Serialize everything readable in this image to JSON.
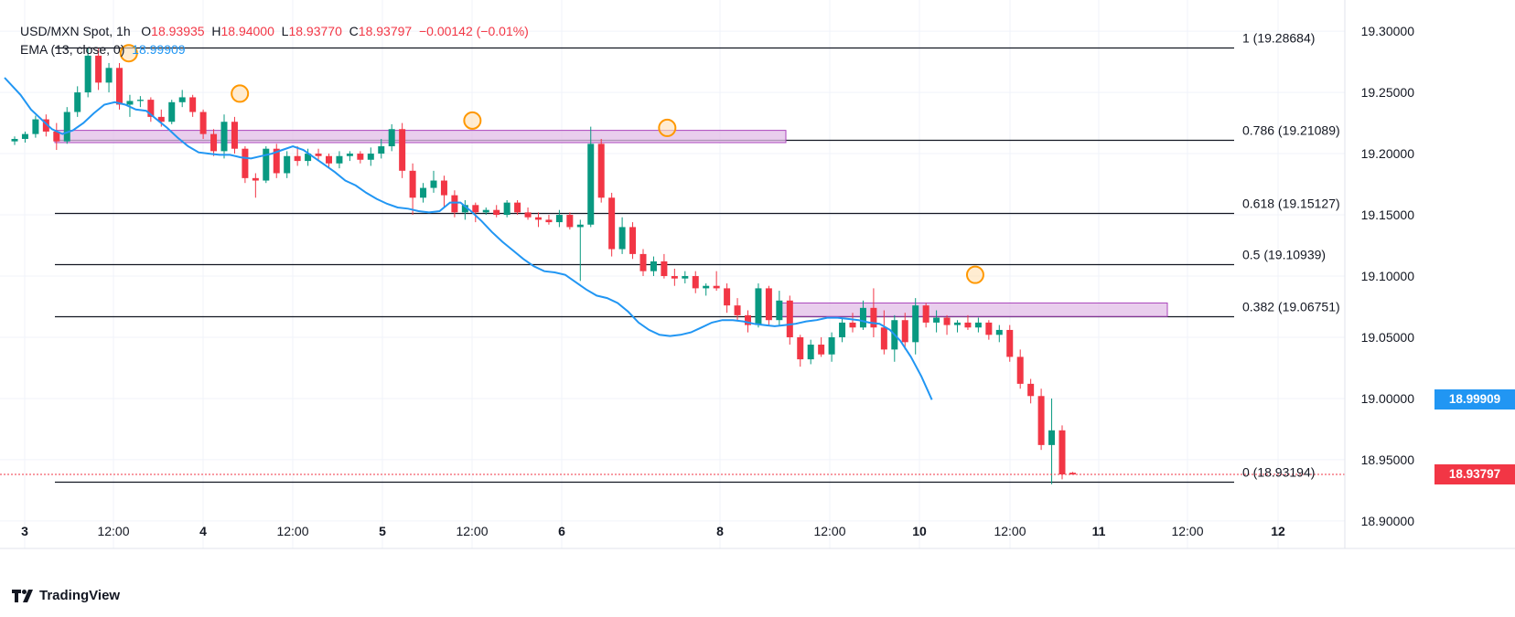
{
  "legend": {
    "line1": {
      "symbol": "USD/MXN Spot, 1h",
      "o_label": "O",
      "o": "18.93935",
      "h_label": "H",
      "h": "18.94000",
      "l_label": "L",
      "l": "18.93770",
      "c_label": "C",
      "c": "18.93797",
      "change": "−0.00142 (−0.01%)"
    },
    "line2": {
      "label": "EMA (13, close, 0)",
      "value": "18.99909"
    }
  },
  "logo": "TradingView",
  "price_tags": {
    "ema": "18.99909",
    "last": "18.93797"
  },
  "colors": {
    "up": "#089981",
    "down": "#f23645",
    "ema": "#2196f3",
    "zone_fill": "#e1bee7",
    "zone_stroke": "#ab47bc",
    "marker": "#ff9800",
    "fib_line": "#131722",
    "last_price_line": "#f23645"
  },
  "chart_data": {
    "type": "candlestick",
    "symbol": "USD/MXN Spot",
    "interval": "1h",
    "ylim": [
      18.885,
      19.318
    ],
    "y_ticks": [
      "19.30000",
      "19.25000",
      "19.20000",
      "19.15000",
      "19.10000",
      "19.05000",
      "19.00000",
      "18.95000",
      "18.90000"
    ],
    "x_ticks": [
      "3",
      "12:00",
      "4",
      "12:00",
      "5",
      "12:00",
      "6",
      "8",
      "12:00",
      "10",
      "12:00",
      "11",
      "12:00",
      "12"
    ],
    "x_ticks_bold": [
      "3",
      "4",
      "5",
      "6",
      "8",
      "10",
      "11",
      "12"
    ],
    "fib_levels": [
      {
        "label": "1 (19.28684)",
        "value": 19.28684
      },
      {
        "label": "0.786 (19.21089)",
        "value": 19.21089
      },
      {
        "label": "0.618 (19.15127)",
        "value": 19.15127
      },
      {
        "label": "0.5 (19.10939)",
        "value": 19.10939
      },
      {
        "label": "0.382 (19.06751)",
        "value": 19.06751
      },
      {
        "label": "0 (18.93194)",
        "value": 18.93194
      }
    ],
    "zones": [
      {
        "y1": 19.209,
        "y2": 19.219
      },
      {
        "y1": 19.067,
        "y2": 19.078
      }
    ],
    "markers": [
      19.282,
      19.249,
      19.227,
      19.221,
      19.101
    ],
    "last_price": 18.93797,
    "ema": [
      19.248,
      19.236,
      19.228,
      19.22,
      19.216,
      19.219,
      19.225,
      19.233,
      19.24,
      19.242,
      19.24,
      19.236,
      19.235,
      19.228,
      19.221,
      19.213,
      19.206,
      19.201,
      19.2,
      19.199,
      19.199,
      19.197,
      19.196,
      19.198,
      19.2,
      19.203,
      19.206,
      19.203,
      19.197,
      19.191,
      19.185,
      19.178,
      19.174,
      19.168,
      19.163,
      19.159,
      19.156,
      19.155,
      19.153,
      19.152,
      19.153,
      19.16,
      19.16,
      19.153,
      19.145,
      19.136,
      19.128,
      19.121,
      19.114,
      19.108,
      19.104,
      19.103,
      19.101,
      19.095,
      19.089,
      19.084,
      19.082,
      19.078,
      19.071,
      19.062,
      19.056,
      19.052,
      19.051,
      19.052,
      19.054,
      19.058,
      19.062,
      19.064,
      19.064,
      19.063,
      19.061,
      19.06,
      19.059,
      19.06,
      19.061,
      19.063,
      19.064,
      19.066,
      19.066,
      19.065,
      19.064,
      19.062,
      19.061,
      19.056,
      19.047,
      19.034,
      19.018,
      18.999
    ],
    "candles": [
      {
        "o": 19.21,
        "h": 19.214,
        "l": 19.207,
        "c": 19.212
      },
      {
        "o": 19.212,
        "h": 19.218,
        "l": 19.209,
        "c": 19.216
      },
      {
        "o": 19.216,
        "h": 19.231,
        "l": 19.213,
        "c": 19.228
      },
      {
        "o": 19.228,
        "h": 19.232,
        "l": 19.214,
        "c": 19.218
      },
      {
        "o": 19.218,
        "h": 19.225,
        "l": 19.203,
        "c": 19.21
      },
      {
        "o": 19.21,
        "h": 19.238,
        "l": 19.208,
        "c": 19.234
      },
      {
        "o": 19.234,
        "h": 19.255,
        "l": 19.23,
        "c": 19.25
      },
      {
        "o": 19.25,
        "h": 19.286,
        "l": 19.246,
        "c": 19.28
      },
      {
        "o": 19.28,
        "h": 19.286,
        "l": 19.252,
        "c": 19.258
      },
      {
        "o": 19.258,
        "h": 19.274,
        "l": 19.25,
        "c": 19.27
      },
      {
        "o": 19.27,
        "h": 19.274,
        "l": 19.236,
        "c": 19.24
      },
      {
        "o": 19.24,
        "h": 19.248,
        "l": 19.23,
        "c": 19.243
      },
      {
        "o": 19.243,
        "h": 19.247,
        "l": 19.238,
        "c": 19.244
      },
      {
        "o": 19.244,
        "h": 19.246,
        "l": 19.226,
        "c": 19.23
      },
      {
        "o": 19.23,
        "h": 19.236,
        "l": 19.222,
        "c": 19.226
      },
      {
        "o": 19.226,
        "h": 19.244,
        "l": 19.224,
        "c": 19.242
      },
      {
        "o": 19.242,
        "h": 19.252,
        "l": 19.238,
        "c": 19.246
      },
      {
        "o": 19.246,
        "h": 19.248,
        "l": 19.23,
        "c": 19.234
      },
      {
        "o": 19.234,
        "h": 19.236,
        "l": 19.212,
        "c": 19.216
      },
      {
        "o": 19.216,
        "h": 19.22,
        "l": 19.198,
        "c": 19.202
      },
      {
        "o": 19.202,
        "h": 19.232,
        "l": 19.196,
        "c": 19.226
      },
      {
        "o": 19.226,
        "h": 19.23,
        "l": 19.2,
        "c": 19.204
      },
      {
        "o": 19.204,
        "h": 19.206,
        "l": 19.176,
        "c": 19.18
      },
      {
        "o": 19.18,
        "h": 19.184,
        "l": 19.164,
        "c": 19.178
      },
      {
        "o": 19.178,
        "h": 19.206,
        "l": 19.176,
        "c": 19.204
      },
      {
        "o": 19.204,
        "h": 19.208,
        "l": 19.18,
        "c": 19.184
      },
      {
        "o": 19.184,
        "h": 19.202,
        "l": 19.18,
        "c": 19.198
      },
      {
        "o": 19.198,
        "h": 19.206,
        "l": 19.19,
        "c": 19.194
      },
      {
        "o": 19.194,
        "h": 19.204,
        "l": 19.19,
        "c": 19.2
      },
      {
        "o": 19.2,
        "h": 19.204,
        "l": 19.195,
        "c": 19.198
      },
      {
        "o": 19.198,
        "h": 19.2,
        "l": 19.188,
        "c": 19.192
      },
      {
        "o": 19.192,
        "h": 19.202,
        "l": 19.188,
        "c": 19.198
      },
      {
        "o": 19.198,
        "h": 19.202,
        "l": 19.194,
        "c": 19.2
      },
      {
        "o": 19.2,
        "h": 19.202,
        "l": 19.192,
        "c": 19.195
      },
      {
        "o": 19.195,
        "h": 19.205,
        "l": 19.19,
        "c": 19.2
      },
      {
        "o": 19.2,
        "h": 19.212,
        "l": 19.196,
        "c": 19.206
      },
      {
        "o": 19.206,
        "h": 19.224,
        "l": 19.202,
        "c": 19.22
      },
      {
        "o": 19.22,
        "h": 19.225,
        "l": 19.18,
        "c": 19.186
      },
      {
        "o": 19.186,
        "h": 19.192,
        "l": 19.15,
        "c": 19.164
      },
      {
        "o": 19.164,
        "h": 19.176,
        "l": 19.16,
        "c": 19.172
      },
      {
        "o": 19.172,
        "h": 19.186,
        "l": 19.168,
        "c": 19.178
      },
      {
        "o": 19.178,
        "h": 19.182,
        "l": 19.156,
        "c": 19.166
      },
      {
        "o": 19.166,
        "h": 19.17,
        "l": 19.148,
        "c": 19.152
      },
      {
        "o": 19.152,
        "h": 19.162,
        "l": 19.146,
        "c": 19.158
      },
      {
        "o": 19.158,
        "h": 19.16,
        "l": 19.144,
        "c": 19.152
      },
      {
        "o": 19.152,
        "h": 19.156,
        "l": 19.15,
        "c": 19.154
      },
      {
        "o": 19.154,
        "h": 19.158,
        "l": 19.148,
        "c": 19.15
      },
      {
        "o": 19.15,
        "h": 19.162,
        "l": 19.148,
        "c": 19.16
      },
      {
        "o": 19.16,
        "h": 19.162,
        "l": 19.15,
        "c": 19.152
      },
      {
        "o": 19.152,
        "h": 19.156,
        "l": 19.146,
        "c": 19.148
      },
      {
        "o": 19.148,
        "h": 19.152,
        "l": 19.14,
        "c": 19.146
      },
      {
        "o": 19.146,
        "h": 19.15,
        "l": 19.142,
        "c": 19.144
      },
      {
        "o": 19.144,
        "h": 19.154,
        "l": 19.14,
        "c": 19.15
      },
      {
        "o": 19.15,
        "h": 19.152,
        "l": 19.138,
        "c": 19.14
      },
      {
        "o": 19.14,
        "h": 19.146,
        "l": 19.096,
        "c": 19.142
      },
      {
        "o": 19.142,
        "h": 19.222,
        "l": 19.14,
        "c": 19.208
      },
      {
        "o": 19.208,
        "h": 19.212,
        "l": 19.16,
        "c": 19.164
      },
      {
        "o": 19.164,
        "h": 19.168,
        "l": 19.116,
        "c": 19.122
      },
      {
        "o": 19.122,
        "h": 19.148,
        "l": 19.118,
        "c": 19.14
      },
      {
        "o": 19.14,
        "h": 19.144,
        "l": 19.114,
        "c": 19.118
      },
      {
        "o": 19.118,
        "h": 19.122,
        "l": 19.1,
        "c": 19.104
      },
      {
        "o": 19.104,
        "h": 19.116,
        "l": 19.1,
        "c": 19.112
      },
      {
        "o": 19.112,
        "h": 19.118,
        "l": 19.098,
        "c": 19.1
      },
      {
        "o": 19.1,
        "h": 19.106,
        "l": 19.092,
        "c": 19.098
      },
      {
        "o": 19.098,
        "h": 19.104,
        "l": 19.094,
        "c": 19.1
      },
      {
        "o": 19.1,
        "h": 19.104,
        "l": 19.086,
        "c": 19.09
      },
      {
        "o": 19.09,
        "h": 19.094,
        "l": 19.084,
        "c": 19.092
      },
      {
        "o": 19.092,
        "h": 19.104,
        "l": 19.088,
        "c": 19.09
      },
      {
        "o": 19.09,
        "h": 19.094,
        "l": 19.07,
        "c": 19.076
      },
      {
        "o": 19.076,
        "h": 19.082,
        "l": 19.064,
        "c": 19.068
      },
      {
        "o": 19.068,
        "h": 19.072,
        "l": 19.054,
        "c": 19.06
      },
      {
        "o": 19.06,
        "h": 19.094,
        "l": 19.058,
        "c": 19.09
      },
      {
        "o": 19.09,
        "h": 19.092,
        "l": 19.06,
        "c": 19.064
      },
      {
        "o": 19.064,
        "h": 19.088,
        "l": 19.06,
        "c": 19.08
      },
      {
        "o": 19.08,
        "h": 19.084,
        "l": 19.044,
        "c": 19.05
      },
      {
        "o": 19.05,
        "h": 19.052,
        "l": 19.026,
        "c": 19.032
      },
      {
        "o": 19.032,
        "h": 19.048,
        "l": 19.028,
        "c": 19.044
      },
      {
        "o": 19.044,
        "h": 19.05,
        "l": 19.034,
        "c": 19.036
      },
      {
        "o": 19.036,
        "h": 19.054,
        "l": 19.03,
        "c": 19.05
      },
      {
        "o": 19.05,
        "h": 19.066,
        "l": 19.046,
        "c": 19.062
      },
      {
        "o": 19.062,
        "h": 19.07,
        "l": 19.054,
        "c": 19.058
      },
      {
        "o": 19.058,
        "h": 19.08,
        "l": 19.056,
        "c": 19.074
      },
      {
        "o": 19.074,
        "h": 19.09,
        "l": 19.05,
        "c": 19.058
      },
      {
        "o": 19.058,
        "h": 19.072,
        "l": 19.036,
        "c": 19.04
      },
      {
        "o": 19.04,
        "h": 19.068,
        "l": 19.03,
        "c": 19.064
      },
      {
        "o": 19.064,
        "h": 19.07,
        "l": 19.04,
        "c": 19.046
      },
      {
        "o": 19.046,
        "h": 19.082,
        "l": 19.036,
        "c": 19.076
      },
      {
        "o": 19.076,
        "h": 19.078,
        "l": 19.058,
        "c": 19.062
      },
      {
        "o": 19.062,
        "h": 19.072,
        "l": 19.054,
        "c": 19.066
      },
      {
        "o": 19.066,
        "h": 19.068,
        "l": 19.052,
        "c": 19.06
      },
      {
        "o": 19.06,
        "h": 19.064,
        "l": 19.054,
        "c": 19.062
      },
      {
        "o": 19.062,
        "h": 19.068,
        "l": 19.056,
        "c": 19.058
      },
      {
        "o": 19.058,
        "h": 19.066,
        "l": 19.054,
        "c": 19.062
      },
      {
        "o": 19.062,
        "h": 19.064,
        "l": 19.048,
        "c": 19.052
      },
      {
        "o": 19.052,
        "h": 19.06,
        "l": 19.046,
        "c": 19.056
      },
      {
        "o": 19.056,
        "h": 19.06,
        "l": 19.03,
        "c": 19.034
      },
      {
        "o": 19.034,
        "h": 19.04,
        "l": 19.008,
        "c": 19.012
      },
      {
        "o": 19.012,
        "h": 19.016,
        "l": 18.996,
        "c": 19.002
      },
      {
        "o": 19.002,
        "h": 19.008,
        "l": 18.958,
        "c": 18.962
      },
      {
        "o": 18.962,
        "h": 19.0,
        "l": 18.93,
        "c": 18.974
      },
      {
        "o": 18.974,
        "h": 18.978,
        "l": 18.934,
        "c": 18.938
      },
      {
        "o": 18.93935,
        "h": 18.94,
        "l": 18.9377,
        "c": 18.93797
      }
    ]
  }
}
